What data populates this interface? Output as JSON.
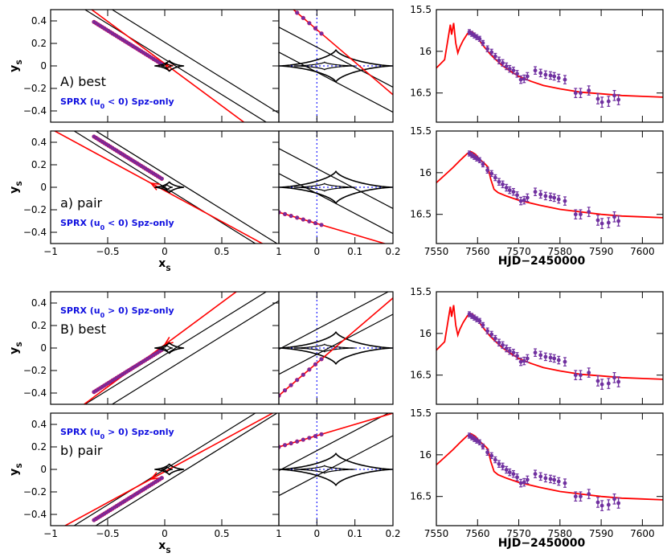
{
  "colors": {
    "model": "#ff0000",
    "points": "#7030a0",
    "points_edge": "#c00060",
    "annot": "#1010e0",
    "caustic": "#000000",
    "axis": "#000000",
    "grid_dotted": "#2020ff"
  },
  "chart_data": {
    "type": "composite-figure",
    "x_label_main": "x",
    "x_label_main_sub": "S",
    "y_label": "y",
    "y_label_sub": "S",
    "lc_xlabel": "HJD−2450000",
    "left_xlim": [
      -1,
      1
    ],
    "left_ylim": [
      -0.5,
      0.5
    ],
    "mid_xlim": [
      -0.1,
      0.2
    ],
    "mid_ylim": [
      -0.5,
      0.5
    ],
    "lc_xlim": [
      7550,
      7605
    ],
    "lc_ylim": [
      16.85,
      15.5
    ],
    "left_xticks": [
      "−1",
      "−0.5",
      "0",
      "0.5",
      "1"
    ],
    "mid_xticks": [
      "0",
      "0.1",
      "0.2"
    ],
    "yticks": [
      "0.4",
      "0.2",
      "0",
      "−0.2",
      "−0.4"
    ],
    "lc_xticks": [
      "7550",
      "7560",
      "7570",
      "7580",
      "7590",
      "7600"
    ],
    "lc_yticks": [
      "15.5",
      "16",
      "16.5"
    ],
    "rows": [
      {
        "panel_label": "A) best",
        "annotation": "SPRX (u",
        "annotation_tail": " < 0) Spz-only",
        "sign": -1,
        "model": "best"
      },
      {
        "panel_label": "a) pair",
        "annotation": "SPRX (u",
        "annotation_tail": " < 0) Spz-only",
        "sign": -1,
        "model": "pair"
      },
      {
        "panel_label": "B) best",
        "annotation": "SPRX (u",
        "annotation_tail": " > 0) Spz-only",
        "sign": 1,
        "model": "best"
      },
      {
        "panel_label": "b) pair",
        "annotation": "SPRX (u",
        "annotation_tail": " > 0) Spz-only",
        "sign": 1,
        "model": "pair"
      }
    ],
    "annotation_sub": "0",
    "lc_data": {
      "t": [
        7558.0,
        7558.6,
        7559.2,
        7559.8,
        7560.5,
        7561.3,
        7562.4,
        7563.4,
        7564.3,
        7565.2,
        7566.1,
        7567.0,
        7567.8,
        7568.7,
        7569.6,
        7570.5,
        7571.3,
        7572.1,
        7574.0,
        7575.3,
        7576.5,
        7577.7,
        7578.6,
        7579.7,
        7581.2,
        7583.8,
        7585.0,
        7587.0,
        7589.2,
        7590.2,
        7591.8,
        7593.2,
        7594.2
      ],
      "mag": [
        15.77,
        15.79,
        15.81,
        15.83,
        15.85,
        15.9,
        15.97,
        16.01,
        16.06,
        16.11,
        16.14,
        16.18,
        16.21,
        16.23,
        16.27,
        16.34,
        16.33,
        16.3,
        16.23,
        16.26,
        16.28,
        16.29,
        16.3,
        16.32,
        16.34,
        16.5,
        16.5,
        16.47,
        16.57,
        16.61,
        16.6,
        16.53,
        16.58
      ],
      "err": [
        0.03,
        0.03,
        0.03,
        0.03,
        0.03,
        0.03,
        0.035,
        0.035,
        0.035,
        0.04,
        0.04,
        0.04,
        0.04,
        0.04,
        0.04,
        0.045,
        0.045,
        0.045,
        0.045,
        0.045,
        0.045,
        0.045,
        0.045,
        0.045,
        0.05,
        0.055,
        0.055,
        0.055,
        0.06,
        0.06,
        0.06,
        0.06,
        0.06
      ]
    },
    "lc_models": {
      "best": {
        "t": [
          7550,
          7552,
          7553.4,
          7553.7,
          7554.2,
          7554.7,
          7555.2,
          7555.7,
          7556.5,
          7557.5,
          7558.3,
          7559,
          7560,
          7561,
          7562,
          7563,
          7564,
          7566,
          7568,
          7570,
          7573,
          7576,
          7580,
          7585,
          7590,
          7595,
          7600,
          7605
        ],
        "mag": [
          16.2,
          16.1,
          15.68,
          15.8,
          15.66,
          15.9,
          16.02,
          15.95,
          15.87,
          15.79,
          15.76,
          15.78,
          15.83,
          15.91,
          15.97,
          16.03,
          16.08,
          16.17,
          16.24,
          16.3,
          16.36,
          16.41,
          16.45,
          16.49,
          16.51,
          16.53,
          16.54,
          16.55
        ]
      },
      "pair": {
        "t": [
          7550,
          7552,
          7554,
          7556,
          7557.5,
          7558.5,
          7559.5,
          7560.5,
          7561.5,
          7562.5,
          7563.2,
          7564,
          7565,
          7567,
          7570,
          7575,
          7580,
          7585,
          7590,
          7595,
          7600,
          7605
        ],
        "mag": [
          16.12,
          16.03,
          15.94,
          15.84,
          15.77,
          15.75,
          15.78,
          15.84,
          15.88,
          15.93,
          16.08,
          16.2,
          16.24,
          16.28,
          16.33,
          16.39,
          16.44,
          16.47,
          16.5,
          16.52,
          16.53,
          16.54
        ]
      }
    }
  }
}
